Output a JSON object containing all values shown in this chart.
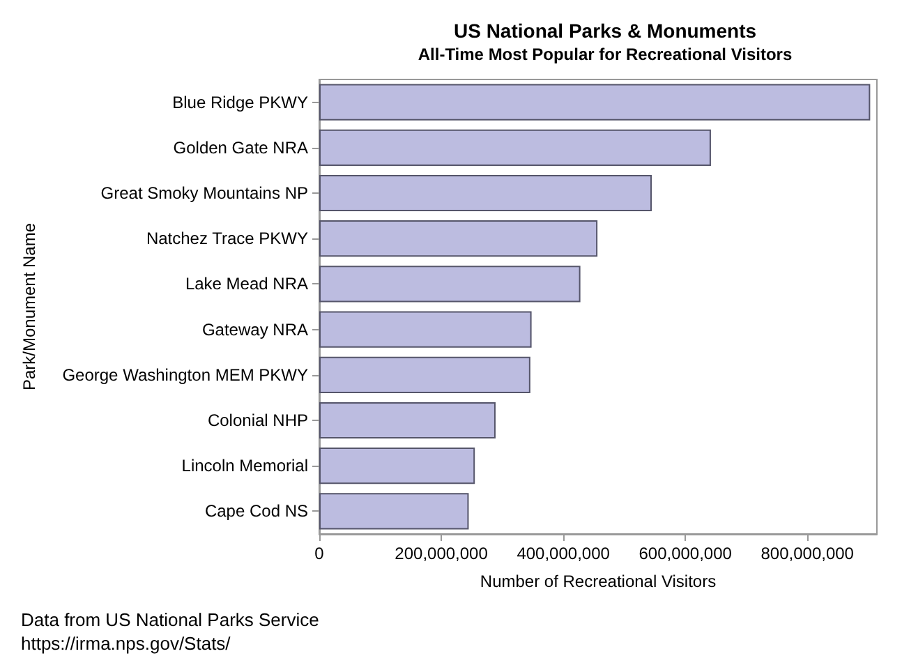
{
  "chart_data": {
    "type": "bar",
    "orientation": "horizontal",
    "title": "US National Parks & Monuments",
    "subtitle": "All-Time Most Popular for Recreational Visitors",
    "xlabel": "Number of Recreational Visitors",
    "ylabel": "Park/Monument Name",
    "categories": [
      "Blue Ridge PKWY",
      "Golden Gate NRA",
      "Great Smoky Mountains NP",
      "Natchez Trace PKWY",
      "Lake Mead NRA",
      "Gateway NRA",
      "George Washington MEM PKWY",
      "Colonial NHP",
      "Lincoln Memorial",
      "Cape Cod NS"
    ],
    "values": [
      903000000,
      642000000,
      545000000,
      456000000,
      428000000,
      348000000,
      346000000,
      289000000,
      255000000,
      245000000
    ],
    "color": "#bcbce0",
    "xlim": [
      0,
      914000000
    ],
    "xticks": [
      {
        "value": 0,
        "label": "0"
      },
      {
        "value": 200000000,
        "label": "200,000,000"
      },
      {
        "value": 400000000,
        "label": "400,000,000"
      },
      {
        "value": 600000000,
        "label": "600,000,000"
      },
      {
        "value": 800000000,
        "label": "800,000,000"
      }
    ],
    "grid": false,
    "annotations": [
      "Data from US National Parks Service",
      "https://irma.nps.gov/Stats/"
    ]
  }
}
